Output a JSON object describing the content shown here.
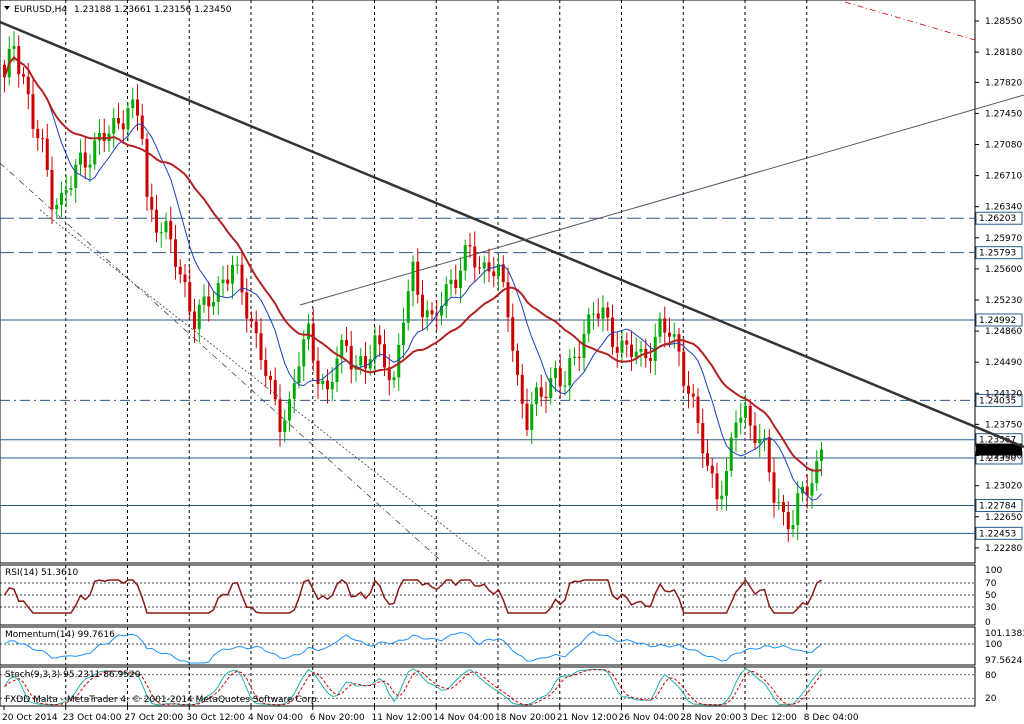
{
  "header": {
    "symbol_label": "EURUSD,H4",
    "ohlc": "1.23188 1.23661 1.23156 1.23450"
  },
  "footer": {
    "copyright": "FXDD Malta - MetaTrader 4, © 2001-2014 MetaQuotes Software Corp."
  },
  "colors": {
    "bull": "#00aa00",
    "bear": "#cc0000",
    "ma_slow": "#b22222",
    "ma_fast": "#1e3fbf",
    "grid": "#000000",
    "momentum": "#1e90ff"
  },
  "chart_data": [
    {
      "type": "candlestick",
      "symbol": "EURUSD",
      "timeframe": "H4",
      "ylim": [
        1.221,
        1.288
      ],
      "y_ticks": [
        "1.28550",
        "1.28180",
        "1.27820",
        "1.27450",
        "1.27080",
        "1.26710",
        "1.26340",
        "1.25970",
        "1.25600",
        "1.25230",
        "1.24860",
        "1.24490",
        "1.24120",
        "1.23750",
        "1.23380",
        "1.23020",
        "1.22650",
        "1.22280"
      ],
      "x_ticks": [
        "20 Oct 2014",
        "23 Oct 04:00",
        "27 Oct 20:00",
        "30 Oct 12:00",
        "4 Nov 04:00",
        "6 Nov 20:00",
        "11 Nov 12:00",
        "14 Nov 04:00",
        "18 Nov 20:00",
        "21 Nov 12:00",
        "26 Nov 04:00",
        "28 Nov 20:00",
        "3 Dec 12:00",
        "8 Dec 04:00"
      ],
      "level_lines": [
        {
          "label": "1.26203",
          "value": 1.26203,
          "style": "dashed"
        },
        {
          "label": "1.25793",
          "value": 1.25793,
          "style": "dashed"
        },
        {
          "label": "1.24992",
          "value": 1.24992,
          "style": "solid"
        },
        {
          "label": "1.24035",
          "value": 1.24035,
          "style": "dashdot"
        },
        {
          "label": "1.23567",
          "value": 1.23567,
          "style": "solid"
        },
        {
          "label": "1.23350",
          "value": 1.2335,
          "style": "solid"
        },
        {
          "label": "1.22784",
          "value": 1.22784,
          "style": "solid"
        },
        {
          "label": "1.22453",
          "value": 1.22453,
          "style": "solid"
        }
      ],
      "current_price": {
        "label": "1.23450",
        "value": 1.2345
      },
      "close_path": [
        [
          0,
          1.278
        ],
        [
          2,
          1.283
        ],
        [
          4,
          1.279
        ],
        [
          6,
          1.273
        ],
        [
          8,
          1.27
        ],
        [
          10,
          1.265
        ],
        [
          12,
          1.264
        ],
        [
          14,
          1.266
        ],
        [
          16,
          1.269
        ],
        [
          18,
          1.27
        ],
        [
          20,
          1.271
        ],
        [
          22,
          1.272
        ],
        [
          24,
          1.274
        ],
        [
          26,
          1.275
        ],
        [
          28,
          1.274
        ],
        [
          29,
          1.272
        ],
        [
          30,
          1.264
        ],
        [
          32,
          1.262
        ],
        [
          34,
          1.26
        ],
        [
          36,
          1.257
        ],
        [
          38,
          1.254
        ],
        [
          40,
          1.25
        ],
        [
          42,
          1.251
        ],
        [
          44,
          1.253
        ],
        [
          46,
          1.255
        ],
        [
          48,
          1.256
        ],
        [
          50,
          1.253
        ],
        [
          52,
          1.25
        ],
        [
          54,
          1.246
        ],
        [
          56,
          1.241
        ],
        [
          58,
          1.238
        ],
        [
          60,
          1.24
        ],
        [
          62,
          1.245
        ],
        [
          64,
          1.248
        ],
        [
          66,
          1.244
        ],
        [
          68,
          1.241
        ],
        [
          70,
          1.245
        ],
        [
          72,
          1.247
        ],
        [
          74,
          1.245
        ],
        [
          76,
          1.244
        ],
        [
          78,
          1.247
        ],
        [
          80,
          1.246
        ],
        [
          82,
          1.242
        ],
        [
          84,
          1.25
        ],
        [
          86,
          1.256
        ],
        [
          88,
          1.252
        ],
        [
          90,
          1.249
        ],
        [
          92,
          1.252
        ],
        [
          94,
          1.255
        ],
        [
          96,
          1.256
        ],
        [
          98,
          1.258
        ],
        [
          100,
          1.256
        ],
        [
          102,
          1.257
        ],
        [
          104,
          1.255
        ],
        [
          106,
          1.251
        ],
        [
          108,
          1.243
        ],
        [
          110,
          1.238
        ],
        [
          112,
          1.24
        ],
        [
          114,
          1.242
        ],
        [
          116,
          1.244
        ],
        [
          118,
          1.242
        ],
        [
          120,
          1.245
        ],
        [
          122,
          1.249
        ],
        [
          124,
          1.251
        ],
        [
          126,
          1.25
        ],
        [
          128,
          1.248
        ],
        [
          130,
          1.247
        ],
        [
          132,
          1.246
        ],
        [
          134,
          1.245
        ],
        [
          136,
          1.247
        ],
        [
          138,
          1.249
        ],
        [
          140,
          1.248
        ],
        [
          142,
          1.246
        ],
        [
          144,
          1.242
        ],
        [
          146,
          1.237
        ],
        [
          148,
          1.232
        ],
        [
          150,
          1.23
        ],
        [
          152,
          1.231
        ],
        [
          154,
          1.238
        ],
        [
          156,
          1.239
        ],
        [
          158,
          1.237
        ],
        [
          160,
          1.234
        ],
        [
          162,
          1.229
        ],
        [
          164,
          1.227
        ],
        [
          166,
          1.226
        ],
        [
          168,
          1.229
        ],
        [
          170,
          1.231
        ],
        [
          172,
          1.2345
        ]
      ],
      "annotations": [
        "descending trendline",
        "ascending trendline",
        "moving averages"
      ]
    },
    {
      "type": "line",
      "title": "RSI(14) 51.3610",
      "ylim": [
        0,
        100
      ],
      "y_ticks": [
        "100",
        "70",
        "50",
        "30",
        "0"
      ]
    },
    {
      "type": "line",
      "title": "Momentum(14) 99.7616",
      "y_ticks": [
        "101.1381",
        "100",
        "97.5624"
      ]
    },
    {
      "type": "line",
      "title": "Stoch(9,3,3) 95.2311 86.9520",
      "y_ticks": [
        "80",
        "20"
      ]
    }
  ]
}
